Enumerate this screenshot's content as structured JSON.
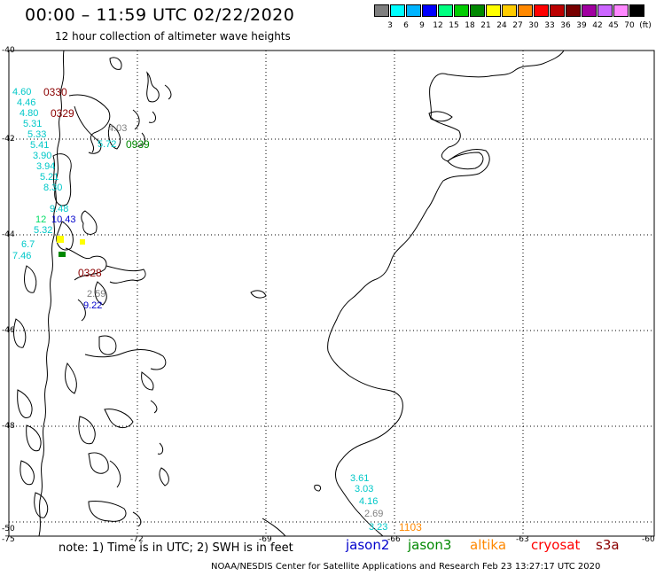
{
  "header": {
    "title": "00:00 – 11:59 UTC 02/22/2020",
    "subtitle": "12 hour collection of altimeter wave heights"
  },
  "colorbar": {
    "unit": "(ft)",
    "entries": [
      {
        "label": "3",
        "color": "#7f7f7f"
      },
      {
        "label": "6",
        "color": "#00ffff"
      },
      {
        "label": "9",
        "color": "#00b4ff"
      },
      {
        "label": "12",
        "color": "#0000ff"
      },
      {
        "label": "15",
        "color": "#00ff80"
      },
      {
        "label": "18",
        "color": "#00cc00"
      },
      {
        "label": "21",
        "color": "#008800"
      },
      {
        "label": "24",
        "color": "#ffff00"
      },
      {
        "label": "27",
        "color": "#ffcc00"
      },
      {
        "label": "30",
        "color": "#ff8800"
      },
      {
        "label": "33",
        "color": "#ff0000"
      },
      {
        "label": "36",
        "color": "#bb0000"
      },
      {
        "label": "39",
        "color": "#770000"
      },
      {
        "label": "42",
        "color": "#a000a0"
      },
      {
        "label": "45",
        "color": "#cc66ff"
      },
      {
        "label": "70",
        "color": "#ff88ff"
      },
      {
        "label": "",
        "color": "#000000"
      }
    ]
  },
  "axes": {
    "lat_labels": [
      "-40",
      "-42",
      "-44",
      "-46",
      "-48",
      "-50"
    ],
    "lon_labels": [
      "-75",
      "-72",
      "-69",
      "-66",
      "-63",
      "-60"
    ]
  },
  "observations": [
    {
      "text": "4.60",
      "color": "#00c8c8"
    },
    {
      "text": "0330",
      "color": "#8b0000"
    },
    {
      "text": "4.46",
      "color": "#00c8c8"
    },
    {
      "text": "4.80",
      "color": "#00c8c8"
    },
    {
      "text": "0329",
      "color": "#8b0000"
    },
    {
      "text": "5.31",
      "color": "#00c8c8"
    },
    {
      "text": "5.33",
      "color": "#00c8c8"
    },
    {
      "text": "5.41",
      "color": "#00c8c8"
    },
    {
      "text": "3.90",
      "color": "#00c8c8"
    },
    {
      "text": "3.94",
      "color": "#00c8c8"
    },
    {
      "text": "5.21",
      "color": "#00c8c8"
    },
    {
      "text": "8.30",
      "color": "#00c8c8"
    },
    {
      "text": "4.03",
      "color": "#808080"
    },
    {
      "text": "0939",
      "color": "#008800"
    },
    {
      "text": "5.72",
      "color": "#00c8c8"
    },
    {
      "text": "9.48",
      "color": "#00c8c8"
    },
    {
      "text": "12",
      "color": "#00dd66"
    },
    {
      "text": "10.43",
      "color": "#0000cc"
    },
    {
      "text": "5.32",
      "color": "#00c8c8"
    },
    {
      "text": "6.7",
      "color": "#00c8c8"
    },
    {
      "text": "7.46",
      "color": "#00c8c8"
    },
    {
      "text": "0328",
      "color": "#8b0000"
    },
    {
      "text": "2.59",
      "color": "#808080"
    },
    {
      "text": "9.22",
      "color": "#0000cc"
    },
    {
      "text": "3.61",
      "color": "#00c8c8"
    },
    {
      "text": "3.03",
      "color": "#00c8c8"
    },
    {
      "text": "4.16",
      "color": "#00c8c8"
    },
    {
      "text": "2.69",
      "color": "#808080"
    },
    {
      "text": "3.23",
      "color": "#00c8c8"
    },
    {
      "text": "1103",
      "color": "#ff8800"
    }
  ],
  "footer": {
    "note": "note: 1) Time is in UTC; 2) SWH is in feet",
    "satellites": [
      {
        "name": "jason2",
        "color": "#0000cc"
      },
      {
        "name": "jason3",
        "color": "#008800"
      },
      {
        "name": "altika",
        "color": "#ff8800"
      },
      {
        "name": "cryosat",
        "color": "#ff0000"
      },
      {
        "name": "s3a",
        "color": "#8b0000"
      }
    ],
    "credit": "NOAA/NESDIS Center for Satellite Applications and Research   Feb 23 13:27:17 UTC 2020"
  }
}
